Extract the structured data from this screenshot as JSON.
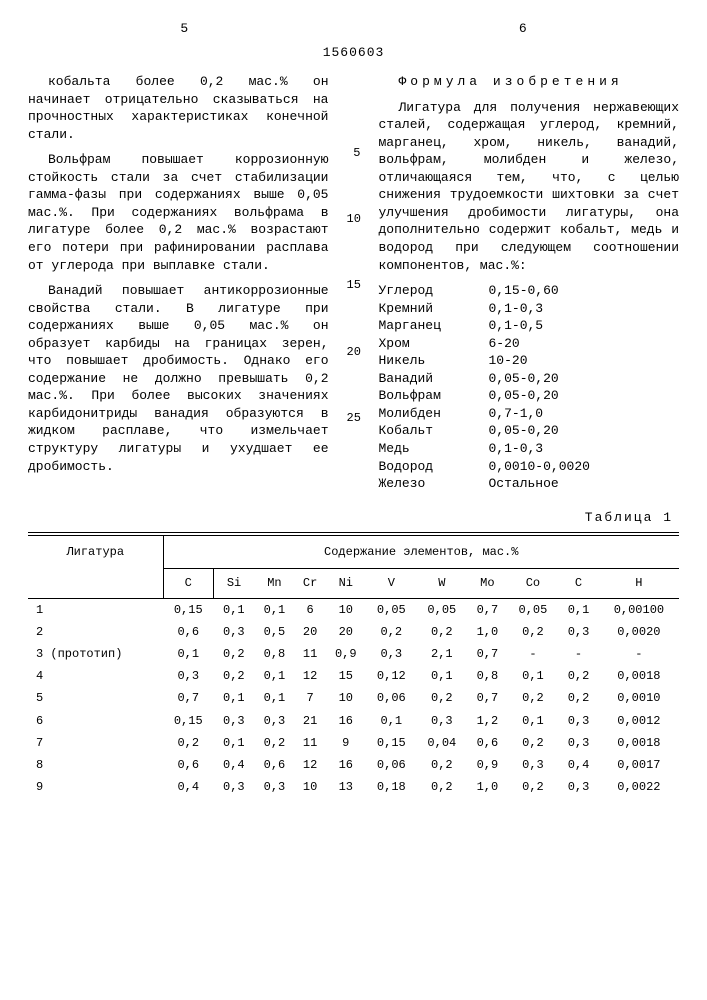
{
  "header": {
    "page_left": "5",
    "page_right": "6",
    "docnum": "1560603"
  },
  "left": {
    "p1": "кобальта более 0,2 мас.% он начинает отрицательно сказываться на прочностных характеристиках конечной стали.",
    "p2": "Вольфрам повышает коррозионную стойкость стали за счет стабилизации гамма-фазы при содержаниях выше 0,05 мас.%. При содержаниях вольфрама в лигатуре более 0,2 мас.% возрастают его потери при рафинировании расплава от углерода при выплавке стали.",
    "p3": "Ванадий повышает антикоррозионные свойства стали. В лигатуре при содержаниях выше 0,05 мас.% он образует карбиды на границах зерен, что повышает дробимость. Однако его содержание не должно превышать 0,2 мас.%. При более высоких значениях карбидонитриды ванадия образуются в жидком расплаве, что измельчает структуру лигатуры и ухудшает ее дробимость."
  },
  "right": {
    "formula_title": "Формула изобретения",
    "p1": "Лигатура для получения нержавеющих сталей, содержащая углерод, кремний, марганец, хром, никель, ванадий, вольфрам, молибден и железо, отличающаяся тем, что, с целью снижения трудоемкости шихтовки за счет улучшения дробимости лигатуры, она дополнительно содержит кобальт, медь и водород при следующем соотношении компонентов, мас.%:",
    "comps": [
      {
        "n": "Углерод",
        "v": "0,15-0,60"
      },
      {
        "n": "Кремний",
        "v": "0,1-0,3"
      },
      {
        "n": "Марганец",
        "v": "0,1-0,5"
      },
      {
        "n": "Хром",
        "v": "6-20"
      },
      {
        "n": "Никель",
        "v": "10-20"
      },
      {
        "n": "Ванадий",
        "v": "0,05-0,20"
      },
      {
        "n": "Вольфрам",
        "v": "0,05-0,20"
      },
      {
        "n": "Молибден",
        "v": "0,7-1,0"
      },
      {
        "n": "Кобальт",
        "v": "0,05-0,20"
      },
      {
        "n": "Медь",
        "v": "0,1-0,3"
      },
      {
        "n": "Водород",
        "v": "0,0010-0,0020"
      },
      {
        "n": "Железо",
        "v": "Остальное"
      }
    ]
  },
  "linenums": [
    "5",
    "10",
    "15",
    "20",
    "25"
  ],
  "table": {
    "label": "Таблица 1",
    "head_lig": "Лигатура",
    "head_span": "Содержание элементов, мас.%",
    "cols": [
      "C",
      "Si",
      "Mn",
      "Cr",
      "Ni",
      "V",
      "W",
      "Mo",
      "Co",
      "C",
      "H"
    ],
    "rows": [
      {
        "n": "1",
        "v": [
          "0,15",
          "0,1",
          "0,1",
          "6",
          "10",
          "0,05",
          "0,05",
          "0,7",
          "0,05",
          "0,1",
          "0,00100"
        ]
      },
      {
        "n": "2",
        "v": [
          "0,6",
          "0,3",
          "0,5",
          "20",
          "20",
          "0,2",
          "0,2",
          "1,0",
          "0,2",
          "0,3",
          "0,0020"
        ]
      },
      {
        "n": "3 (прототип)",
        "v": [
          "0,1",
          "0,2",
          "0,8",
          "11",
          "0,9",
          "0,3",
          "2,1",
          "0,7",
          "-",
          "-",
          "-"
        ]
      },
      {
        "n": "4",
        "v": [
          "0,3",
          "0,2",
          "0,1",
          "12",
          "15",
          "0,12",
          "0,1",
          "0,8",
          "0,1",
          "0,2",
          "0,0018"
        ]
      },
      {
        "n": "5",
        "v": [
          "0,7",
          "0,1",
          "0,1",
          "7",
          "10",
          "0,06",
          "0,2",
          "0,7",
          "0,2",
          "0,2",
          "0,0010"
        ]
      },
      {
        "n": "6",
        "v": [
          "0,15",
          "0,3",
          "0,3",
          "21",
          "16",
          "0,1",
          "0,3",
          "1,2",
          "0,1",
          "0,3",
          "0,0012"
        ]
      },
      {
        "n": "7",
        "v": [
          "0,2",
          "0,1",
          "0,2",
          "11",
          "9",
          "0,15",
          "0,04",
          "0,6",
          "0,2",
          "0,3",
          "0,0018"
        ]
      },
      {
        "n": "8",
        "v": [
          "0,6",
          "0,4",
          "0,6",
          "12",
          "16",
          "0,06",
          "0,2",
          "0,9",
          "0,3",
          "0,4",
          "0,0017"
        ]
      },
      {
        "n": "9",
        "v": [
          "0,4",
          "0,3",
          "0,3",
          "10",
          "13",
          "0,18",
          "0,2",
          "1,0",
          "0,2",
          "0,3",
          "0,0022"
        ]
      }
    ]
  }
}
